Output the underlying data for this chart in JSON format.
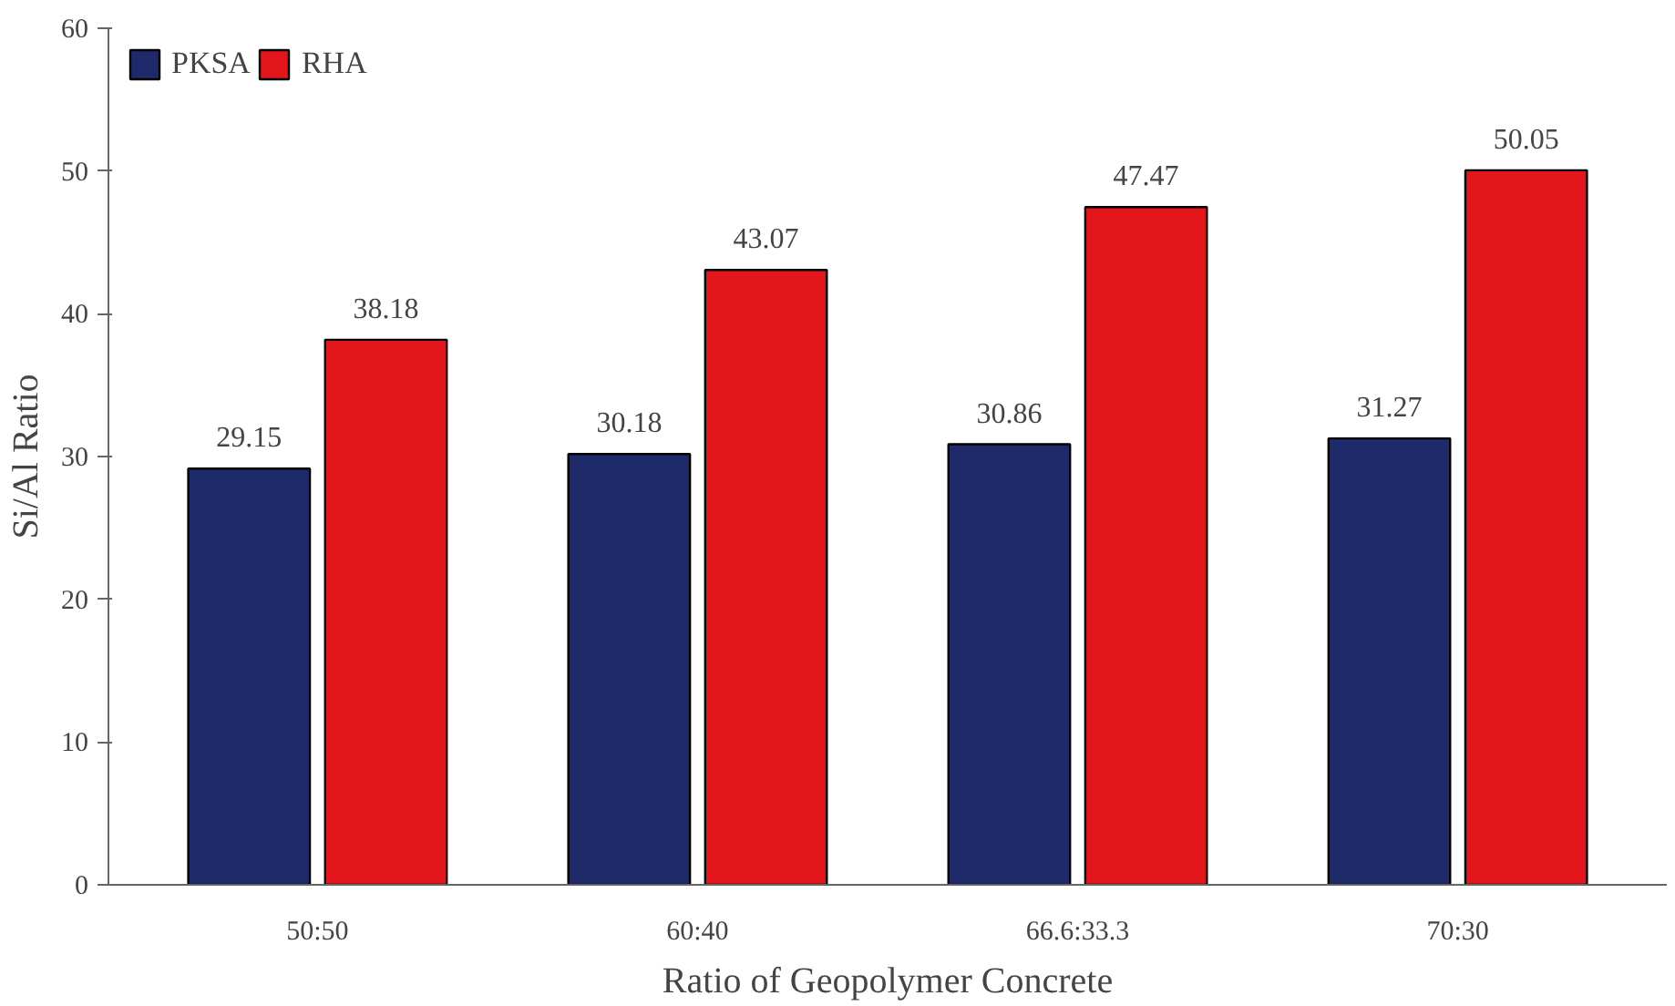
{
  "chart_data": {
    "type": "bar",
    "xlabel": "Ratio of Geopolymer Concrete",
    "ylabel": "Si/Al Ratio",
    "categories": [
      "50:50",
      "60:40",
      "66.6:33.3",
      "70:30"
    ],
    "series": [
      {
        "name": "PKSA",
        "color": "#1f2a6b",
        "values": [
          29.15,
          30.18,
          30.86,
          31.27
        ]
      },
      {
        "name": "RHA",
        "color": "#e3171b",
        "values": [
          38.18,
          43.07,
          47.47,
          50.05
        ]
      }
    ],
    "ylim": [
      0,
      60
    ],
    "yticks": [
      0,
      10,
      20,
      30,
      40,
      50,
      60
    ],
    "grid": false,
    "legend": "top left",
    "data_labels": true
  }
}
